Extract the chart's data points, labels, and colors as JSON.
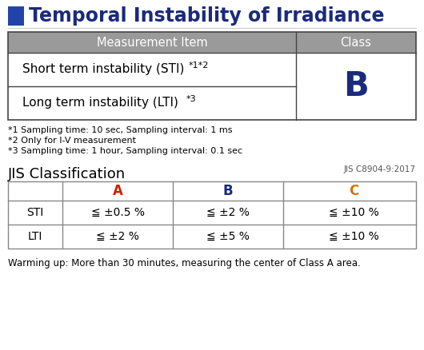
{
  "title": "Temporal Instability of Irradiance",
  "title_color": "#1a2a7c",
  "title_fontsize": 17,
  "title_icon_color": "#2244aa",
  "bg_color": "#ffffff",
  "table1_header": [
    "Measurement Item",
    "Class"
  ],
  "table1_header_bg": "#9a9a9a",
  "table1_header_fg": "#ffffff",
  "class_value": "B",
  "class_color": "#1a2a7c",
  "footnotes": [
    "*1 Sampling time: 10 sec, Sampling interval: 1 ms",
    "*2 Only for I-V measurement",
    "*3 Sampling time: 1 hour, Sampling interval: 0.1 sec"
  ],
  "jis_title": "JIS Classification",
  "jis_ref": "JIS C8904-9:2017",
  "table2_headers": [
    "",
    "A",
    "B",
    "C"
  ],
  "table2_header_colors": [
    "#000000",
    "#cc2200",
    "#1a2a7c",
    "#cc7700"
  ],
  "table2_rows": [
    [
      "STI",
      "≦ ±0.5 %",
      "≦ ±2 %",
      "≦ ±10 %"
    ],
    [
      "LTI",
      "≦ ±2 %",
      "≦ ±5 %",
      "≦ ±10 %"
    ]
  ],
  "warning_text": "Warming up: More than 30 minutes, measuring the center of Class A area.",
  "table1_border_color": "#444444",
  "table2_border_color": "#888888"
}
